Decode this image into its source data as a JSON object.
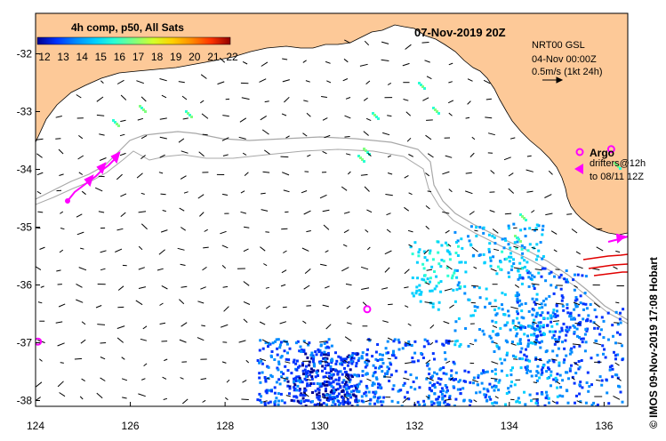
{
  "title": "07-Nov-2019 20Z",
  "colorbar": {
    "title": "4h comp, p50, All Sats",
    "ticks": [
      "12",
      "13",
      "14",
      "15",
      "16",
      "17",
      "18",
      "19",
      "20",
      "21",
      "22"
    ],
    "colors": [
      "#00008f",
      "#0033ff",
      "#008bff",
      "#00d0ff",
      "#2affd3",
      "#7fff7f",
      "#d3ff2a",
      "#ffd000",
      "#ff8b00",
      "#ff3300",
      "#8f0000"
    ]
  },
  "source": {
    "line1": "NRT00 GSL",
    "line2": "04-Nov 00:00Z"
  },
  "scale": {
    "label": "0.5m/s (1kt 24h)"
  },
  "legend": {
    "argo": "Argo",
    "drifters_line1": "drifters@12h",
    "drifters_line2": "to 08/11 12Z"
  },
  "credit": "© IMOS 09-Nov-2019 17:08 Hobart",
  "axes": {
    "x_ticks": [
      "124",
      "126",
      "128",
      "130",
      "132",
      "134",
      "136"
    ],
    "y_ticks": [
      "-32",
      "-33",
      "-34",
      "-35",
      "-36",
      "-37",
      "-38"
    ],
    "lon_range": [
      124,
      136.5
    ],
    "lat_range": [
      -38.1,
      -31.3
    ]
  },
  "colors": {
    "land": "#fdc998",
    "coast": "#000000",
    "bathy": "#a8a8a8",
    "argo": "#ff00ff",
    "drifter": "#ff00ff",
    "drifter_red": "#e00000"
  },
  "argo_floats": [
    {
      "lon": 136.15,
      "lat": -33.65
    },
    {
      "lon": 131.0,
      "lat": -36.42
    },
    {
      "lon": 124.05,
      "lat": -36.98
    }
  ]
}
